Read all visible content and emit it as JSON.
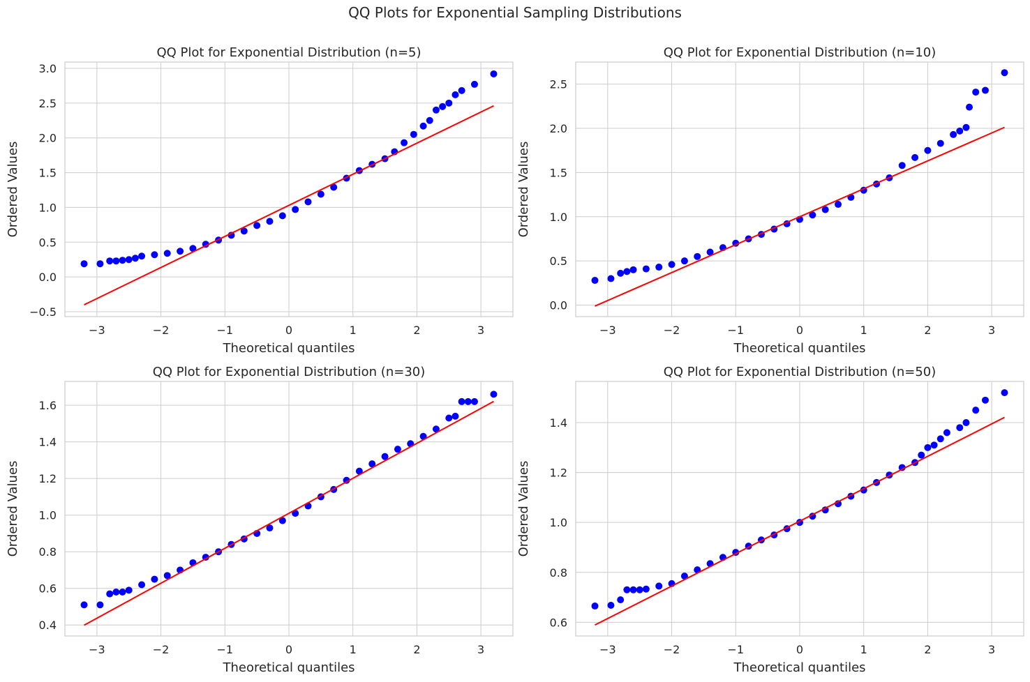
{
  "suptitle": "QQ Plots for Exponential Sampling Distributions",
  "colors": {
    "points": "#0000ff",
    "line": "#ff0000",
    "grid": "#cccccc",
    "spine": "#cccccc",
    "text": "#262626"
  },
  "chart_data": [
    {
      "type": "scatter",
      "title": "QQ Plot for Exponential Distribution (n=5)",
      "xlabel": "Theoretical quantiles",
      "ylabel": "Ordered Values",
      "xlim": [
        -3.5,
        3.5
      ],
      "ylim": [
        -0.57,
        3.09
      ],
      "xticks": [
        -3,
        -2,
        -1,
        0,
        1,
        2,
        3
      ],
      "yticks": [
        -0.5,
        0.0,
        0.5,
        1.0,
        1.5,
        2.0,
        2.5,
        3.0
      ],
      "yticklabels": [
        "−0.5",
        "0.0",
        "0.5",
        "1.0",
        "1.5",
        "2.0",
        "2.5",
        "3.0"
      ],
      "xticklabels": [
        "−3",
        "−2",
        "−1",
        "0",
        "1",
        "2",
        "3"
      ],
      "grid": true,
      "fit_line": {
        "slope": 0.447,
        "intercept": 1.03,
        "x_range": [
          -3.2,
          3.2
        ]
      },
      "points": [
        [
          -3.2,
          0.19
        ],
        [
          -2.95,
          0.19
        ],
        [
          -2.8,
          0.23
        ],
        [
          -2.7,
          0.23
        ],
        [
          -2.6,
          0.24
        ],
        [
          -2.5,
          0.25
        ],
        [
          -2.4,
          0.27
        ],
        [
          -2.3,
          0.3
        ],
        [
          -2.1,
          0.32
        ],
        [
          -1.9,
          0.34
        ],
        [
          -1.7,
          0.37
        ],
        [
          -1.5,
          0.41
        ],
        [
          -1.3,
          0.47
        ],
        [
          -1.1,
          0.53
        ],
        [
          -0.9,
          0.6
        ],
        [
          -0.7,
          0.66
        ],
        [
          -0.5,
          0.74
        ],
        [
          -0.3,
          0.8
        ],
        [
          -0.1,
          0.88
        ],
        [
          0.1,
          0.97
        ],
        [
          0.3,
          1.08
        ],
        [
          0.5,
          1.19
        ],
        [
          0.7,
          1.29
        ],
        [
          0.9,
          1.42
        ],
        [
          1.1,
          1.53
        ],
        [
          1.3,
          1.62
        ],
        [
          1.5,
          1.7
        ],
        [
          1.65,
          1.8
        ],
        [
          1.8,
          1.93
        ],
        [
          1.95,
          2.05
        ],
        [
          2.1,
          2.17
        ],
        [
          2.2,
          2.25
        ],
        [
          2.3,
          2.4
        ],
        [
          2.4,
          2.45
        ],
        [
          2.5,
          2.5
        ],
        [
          2.6,
          2.62
        ],
        [
          2.7,
          2.68
        ],
        [
          2.9,
          2.77
        ],
        [
          3.2,
          2.92
        ]
      ]
    },
    {
      "type": "scatter",
      "title": "QQ Plot for Exponential Distribution (n=10)",
      "xlabel": "Theoretical quantiles",
      "ylabel": "Ordered Values",
      "xlim": [
        -3.5,
        3.5
      ],
      "ylim": [
        -0.13,
        2.75
      ],
      "xticks": [
        -3,
        -2,
        -1,
        0,
        1,
        2,
        3
      ],
      "yticks": [
        0.0,
        0.5,
        1.0,
        1.5,
        2.0,
        2.5
      ],
      "yticklabels": [
        "0.0",
        "0.5",
        "1.0",
        "1.5",
        "2.0",
        "2.5"
      ],
      "xticklabels": [
        "−3",
        "−2",
        "−1",
        "0",
        "1",
        "2",
        "3"
      ],
      "grid": true,
      "fit_line": {
        "slope": 0.316,
        "intercept": 1.0,
        "x_range": [
          -3.2,
          3.2
        ]
      },
      "points": [
        [
          -3.2,
          0.28
        ],
        [
          -2.95,
          0.3
        ],
        [
          -2.8,
          0.36
        ],
        [
          -2.7,
          0.38
        ],
        [
          -2.6,
          0.4
        ],
        [
          -2.4,
          0.41
        ],
        [
          -2.2,
          0.43
        ],
        [
          -2.0,
          0.46
        ],
        [
          -1.8,
          0.5
        ],
        [
          -1.6,
          0.55
        ],
        [
          -1.4,
          0.6
        ],
        [
          -1.2,
          0.65
        ],
        [
          -1.0,
          0.7
        ],
        [
          -0.8,
          0.75
        ],
        [
          -0.6,
          0.8
        ],
        [
          -0.4,
          0.86
        ],
        [
          -0.2,
          0.92
        ],
        [
          0.0,
          0.97
        ],
        [
          0.2,
          1.02
        ],
        [
          0.4,
          1.08
        ],
        [
          0.6,
          1.14
        ],
        [
          0.8,
          1.22
        ],
        [
          1.0,
          1.3
        ],
        [
          1.2,
          1.37
        ],
        [
          1.4,
          1.44
        ],
        [
          1.6,
          1.58
        ],
        [
          1.8,
          1.67
        ],
        [
          2.0,
          1.75
        ],
        [
          2.2,
          1.83
        ],
        [
          2.4,
          1.93
        ],
        [
          2.5,
          1.97
        ],
        [
          2.6,
          2.01
        ],
        [
          2.65,
          2.24
        ],
        [
          2.75,
          2.41
        ],
        [
          2.9,
          2.43
        ],
        [
          3.2,
          2.63
        ]
      ]
    },
    {
      "type": "scatter",
      "title": "QQ Plot for Exponential Distribution (n=30)",
      "xlabel": "Theoretical quantiles",
      "ylabel": "Ordered Values",
      "xlim": [
        -3.5,
        3.5
      ],
      "ylim": [
        0.34,
        1.73
      ],
      "xticks": [
        -3,
        -2,
        -1,
        0,
        1,
        2,
        3
      ],
      "yticks": [
        0.4,
        0.6,
        0.8,
        1.0,
        1.2,
        1.4,
        1.6
      ],
      "yticklabels": [
        "0.4",
        "0.6",
        "0.8",
        "1.0",
        "1.2",
        "1.4",
        "1.6"
      ],
      "xticklabels": [
        "−3",
        "−2",
        "−1",
        "0",
        "1",
        "2",
        "3"
      ],
      "grid": true,
      "fit_line": {
        "slope": 0.191,
        "intercept": 1.01,
        "x_range": [
          -3.2,
          3.2
        ]
      },
      "points": [
        [
          -3.2,
          0.51
        ],
        [
          -2.95,
          0.51
        ],
        [
          -2.8,
          0.57
        ],
        [
          -2.7,
          0.58
        ],
        [
          -2.6,
          0.58
        ],
        [
          -2.5,
          0.59
        ],
        [
          -2.3,
          0.62
        ],
        [
          -2.1,
          0.65
        ],
        [
          -1.9,
          0.67
        ],
        [
          -1.7,
          0.7
        ],
        [
          -1.5,
          0.74
        ],
        [
          -1.3,
          0.77
        ],
        [
          -1.1,
          0.8
        ],
        [
          -0.9,
          0.84
        ],
        [
          -0.7,
          0.87
        ],
        [
          -0.5,
          0.9
        ],
        [
          -0.3,
          0.93
        ],
        [
          -0.1,
          0.97
        ],
        [
          0.1,
          1.01
        ],
        [
          0.3,
          1.05
        ],
        [
          0.5,
          1.1
        ],
        [
          0.7,
          1.14
        ],
        [
          0.9,
          1.19
        ],
        [
          1.1,
          1.24
        ],
        [
          1.3,
          1.28
        ],
        [
          1.5,
          1.32
        ],
        [
          1.7,
          1.36
        ],
        [
          1.9,
          1.39
        ],
        [
          2.1,
          1.43
        ],
        [
          2.3,
          1.47
        ],
        [
          2.5,
          1.53
        ],
        [
          2.6,
          1.54
        ],
        [
          2.7,
          1.62
        ],
        [
          2.8,
          1.62
        ],
        [
          2.9,
          1.62
        ],
        [
          3.2,
          1.66
        ]
      ]
    },
    {
      "type": "scatter",
      "title": "QQ Plot for Exponential Distribution (n=50)",
      "xlabel": "Theoretical quantiles",
      "ylabel": "Ordered Values",
      "xlim": [
        -3.5,
        3.5
      ],
      "ylim": [
        0.545,
        1.565
      ],
      "xticks": [
        -3,
        -2,
        -1,
        0,
        1,
        2,
        3
      ],
      "yticks": [
        0.6,
        0.8,
        1.0,
        1.2,
        1.4
      ],
      "yticklabels": [
        "0.6",
        "0.8",
        "1.0",
        "1.2",
        "1.4"
      ],
      "xticklabels": [
        "−3",
        "−2",
        "−1",
        "0",
        "1",
        "2",
        "3"
      ],
      "grid": true,
      "fit_line": {
        "slope": 0.13,
        "intercept": 1.005,
        "x_range": [
          -3.2,
          3.2
        ]
      },
      "points": [
        [
          -3.2,
          0.665
        ],
        [
          -2.95,
          0.668
        ],
        [
          -2.8,
          0.69
        ],
        [
          -2.7,
          0.73
        ],
        [
          -2.6,
          0.73
        ],
        [
          -2.5,
          0.73
        ],
        [
          -2.4,
          0.733
        ],
        [
          -2.2,
          0.745
        ],
        [
          -2.0,
          0.755
        ],
        [
          -1.8,
          0.785
        ],
        [
          -1.6,
          0.81
        ],
        [
          -1.4,
          0.835
        ],
        [
          -1.2,
          0.86
        ],
        [
          -1.0,
          0.88
        ],
        [
          -0.8,
          0.905
        ],
        [
          -0.6,
          0.93
        ],
        [
          -0.4,
          0.95
        ],
        [
          -0.2,
          0.975
        ],
        [
          0.0,
          1.0
        ],
        [
          0.2,
          1.025
        ],
        [
          0.4,
          1.05
        ],
        [
          0.6,
          1.075
        ],
        [
          0.8,
          1.105
        ],
        [
          1.0,
          1.13
        ],
        [
          1.2,
          1.16
        ],
        [
          1.4,
          1.19
        ],
        [
          1.6,
          1.22
        ],
        [
          1.8,
          1.24
        ],
        [
          1.9,
          1.27
        ],
        [
          2.0,
          1.3
        ],
        [
          2.1,
          1.31
        ],
        [
          2.2,
          1.335
        ],
        [
          2.3,
          1.36
        ],
        [
          2.5,
          1.38
        ],
        [
          2.6,
          1.4
        ],
        [
          2.75,
          1.45
        ],
        [
          2.9,
          1.49
        ],
        [
          3.2,
          1.52
        ]
      ]
    }
  ]
}
